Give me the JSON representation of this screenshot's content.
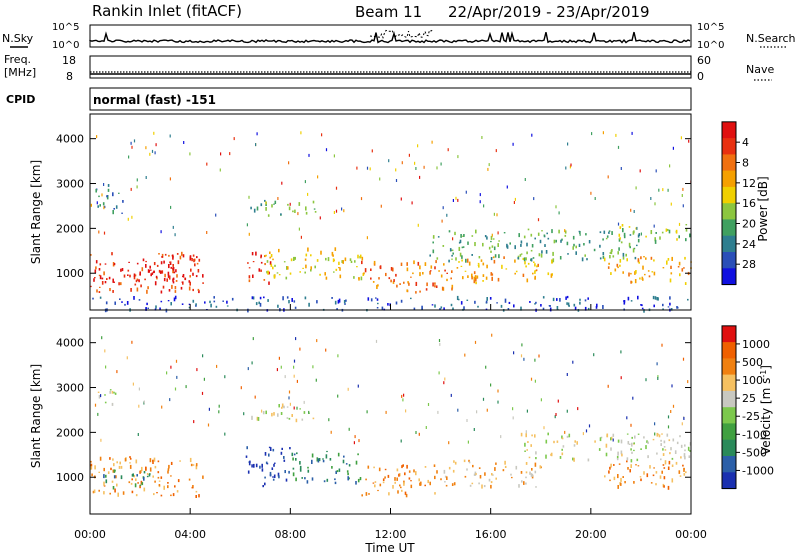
{
  "header": {
    "title": "Rankin Inlet (fitACF)",
    "beam": "Beam 11",
    "date_range": "22/Apr/2019 - 23/Apr/2019"
  },
  "panels": {
    "nsky_label": "N.Sky",
    "nsearch_label": "N.Search",
    "noise_ticks": [
      "10^5",
      "10^0"
    ],
    "freq_label": "Freq.",
    "freq_unit": "[MHz]",
    "freq_ticks": [
      "18",
      "8"
    ],
    "nave_label": "Nave",
    "nave_ticks": [
      "60",
      "0"
    ],
    "cpid_label": "CPID",
    "cpid_text": "normal (fast) -151"
  },
  "chart_data": [
    {
      "type": "heatmap",
      "title": "",
      "xlabel": "Time UT",
      "ylabel": "Slant Range [km]",
      "x_ticks": [
        "00:00",
        "04:00",
        "08:00",
        "12:00",
        "16:00",
        "20:00",
        "00:00"
      ],
      "xlim_hours": [
        0,
        24
      ],
      "y_ticks": [
        1000,
        2000,
        3000,
        4000
      ],
      "ylim": [
        180,
        4550
      ],
      "colorbar_label": "Power [dB]",
      "colorbar_ticks": [
        "4",
        "8",
        "12",
        "16",
        "20",
        "24",
        "28"
      ],
      "colorbar_colors": [
        "#1010e0",
        "#2a4fb8",
        "#2e7e8f",
        "#40a060",
        "#8cc63f",
        "#f0d000",
        "#f5a000",
        "#f07010",
        "#e83010",
        "#e01010"
      ],
      "regions": [
        {
          "t": [
            0.0,
            4.5
          ],
          "r": [
            600,
            1500
          ],
          "level": 8
        },
        {
          "t": [
            0.0,
            3.8
          ],
          "r": [
            800,
            1300
          ],
          "level": 9
        },
        {
          "t": [
            0.2,
            1.3
          ],
          "r": [
            2300,
            3000
          ],
          "level": 2
        },
        {
          "t": [
            6.2,
            7.3
          ],
          "r": [
            800,
            1500
          ],
          "level": 8
        },
        {
          "t": [
            7.0,
            11.0
          ],
          "r": [
            900,
            1600
          ],
          "level": 5
        },
        {
          "t": [
            6.4,
            9.0
          ],
          "r": [
            2300,
            2650
          ],
          "level": 3
        },
        {
          "t": [
            10.8,
            14.5
          ],
          "r": [
            600,
            1300
          ],
          "level": 7
        },
        {
          "t": [
            14.5,
            18.5
          ],
          "r": [
            800,
            1400
          ],
          "level": 6
        },
        {
          "t": [
            13.5,
            22.0
          ],
          "r": [
            1300,
            2000
          ],
          "level": 3
        },
        {
          "t": [
            21.0,
            24.0
          ],
          "r": [
            1700,
            2100
          ],
          "level": 4
        },
        {
          "t": [
            20.5,
            24.0
          ],
          "r": [
            800,
            1400
          ],
          "level": 6
        },
        {
          "t": [
            0.0,
            24.0
          ],
          "r": [
            200,
            500
          ],
          "level": 1
        }
      ]
    },
    {
      "type": "heatmap",
      "title": "",
      "xlabel": "Time UT",
      "ylabel": "Slant Range [km]",
      "x_ticks": [
        "00:00",
        "04:00",
        "08:00",
        "12:00",
        "16:00",
        "20:00",
        "00:00"
      ],
      "xlim_hours": [
        0,
        24
      ],
      "y_ticks": [
        1000,
        2000,
        3000,
        4000
      ],
      "ylim": [
        180,
        4550
      ],
      "colorbar_label": "Velocity [m s^-1]",
      "colorbar_ticks": [
        "1000",
        "500",
        "100",
        "25",
        "-25",
        "-100",
        "-500",
        "-1000"
      ],
      "colorbar_colors": [
        "#1a30b0",
        "#2b5fa8",
        "#2a8a5a",
        "#40a040",
        "#7cc84c",
        "#c8c8c0",
        "#f5c060",
        "#f08010",
        "#f06000",
        "#e01010"
      ],
      "regions": [
        {
          "t": [
            0.0,
            4.5
          ],
          "r": [
            600,
            1500
          ],
          "level": 7
        },
        {
          "t": [
            0.5,
            2.5
          ],
          "r": [
            800,
            1200
          ],
          "level": 2
        },
        {
          "t": [
            6.2,
            8.0
          ],
          "r": [
            800,
            1700
          ],
          "level": 0
        },
        {
          "t": [
            8.0,
            10.8
          ],
          "r": [
            900,
            1600
          ],
          "level": 2
        },
        {
          "t": [
            6.4,
            9.0
          ],
          "r": [
            2300,
            2650
          ],
          "level": 5
        },
        {
          "t": [
            10.8,
            14.0
          ],
          "r": [
            600,
            1300
          ],
          "level": 7
        },
        {
          "t": [
            14.0,
            18.0
          ],
          "r": [
            800,
            1400
          ],
          "level": 6
        },
        {
          "t": [
            17.0,
            24.0
          ],
          "r": [
            1400,
            2000
          ],
          "level": 5
        },
        {
          "t": [
            20.5,
            24.0
          ],
          "r": [
            800,
            1400
          ],
          "level": 7
        },
        {
          "t": [
            0.0,
            1.0
          ],
          "r": [
            2600,
            3000
          ],
          "level": 5
        }
      ]
    }
  ]
}
